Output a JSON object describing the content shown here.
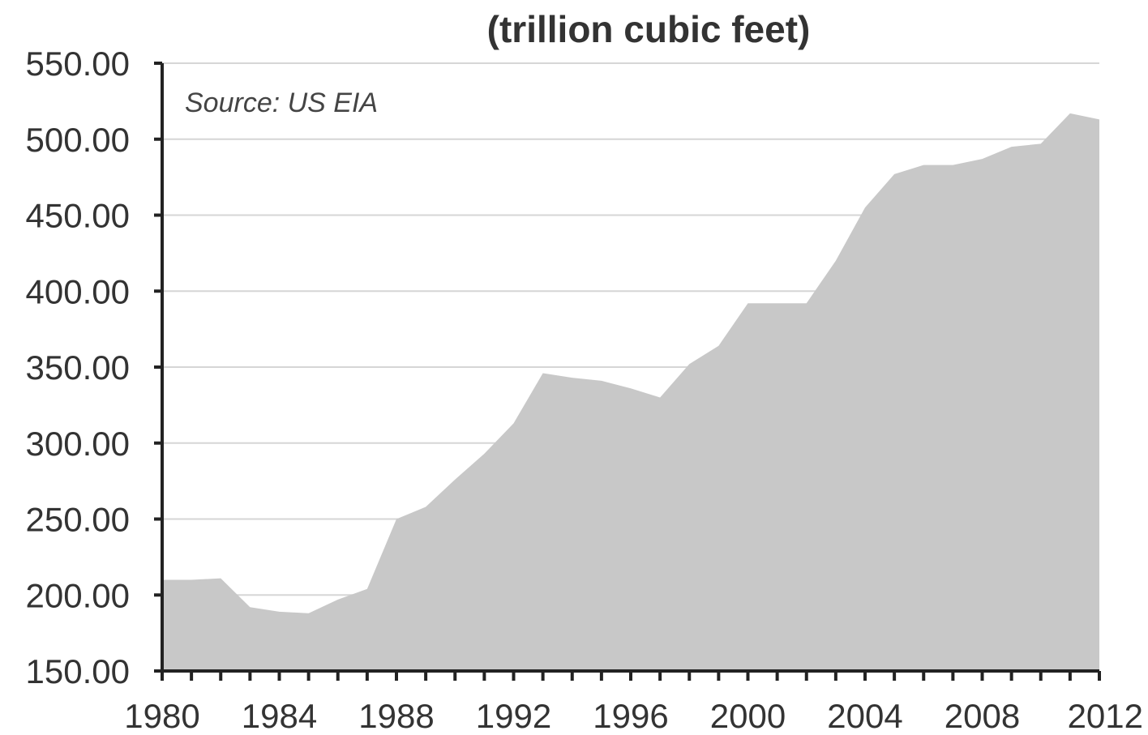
{
  "chart_data": {
    "type": "area",
    "title": "(trillion cubic feet)",
    "annotation": "Source: US EIA",
    "xlabel": "",
    "ylabel": "",
    "xlim": [
      1980,
      2012
    ],
    "ylim": [
      150,
      550
    ],
    "grid": true,
    "yticks": [
      "150.00",
      "200.00",
      "250.00",
      "300.00",
      "350.00",
      "400.00",
      "450.00",
      "500.00",
      "550.00"
    ],
    "xtick_labels": [
      "1980",
      "1984",
      "1988",
      "1992",
      "1996",
      "2000",
      "2004",
      "2008",
      "2012"
    ],
    "x": [
      1980,
      1981,
      1982,
      1983,
      1984,
      1985,
      1986,
      1987,
      1988,
      1989,
      1990,
      1991,
      1992,
      1993,
      1994,
      1995,
      1996,
      1997,
      1998,
      1999,
      2000,
      2001,
      2002,
      2003,
      2004,
      2005,
      2006,
      2007,
      2008,
      2009,
      2010,
      2011,
      2012
    ],
    "series": [
      {
        "values": [
          210,
          210,
          211,
          192,
          189,
          188,
          197,
          204,
          250,
          258,
          276,
          293,
          313,
          346,
          343,
          341,
          336,
          330,
          352,
          364,
          392,
          392,
          392,
          420,
          455,
          477,
          483,
          483,
          487,
          495,
          497,
          517,
          513
        ],
        "color": "#c8c8c8"
      }
    ]
  }
}
